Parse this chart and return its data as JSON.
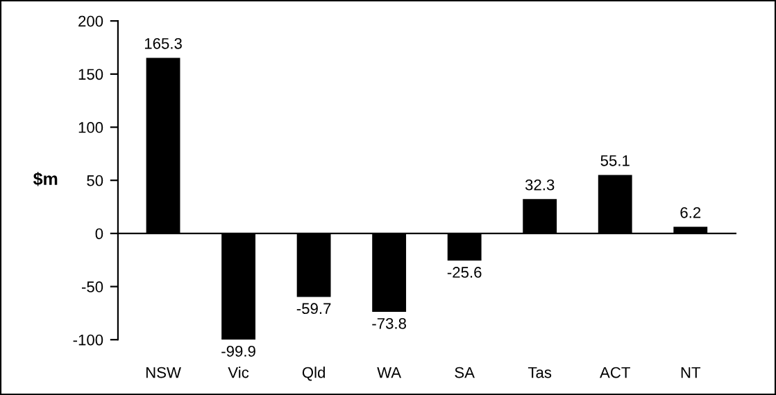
{
  "chart_data": {
    "type": "bar",
    "ylabel": "$m",
    "categories": [
      "NSW",
      "Vic",
      "Qld",
      "WA",
      "SA",
      "Tas",
      "ACT",
      "NT"
    ],
    "values": [
      165.3,
      -99.9,
      -59.7,
      -73.8,
      -25.6,
      32.3,
      55.1,
      6.2
    ],
    "color": "#000000",
    "ylim": [
      -100,
      200
    ],
    "yticks": [
      -100,
      -50,
      0,
      50,
      100,
      150,
      200
    ],
    "data_labels": true
  }
}
